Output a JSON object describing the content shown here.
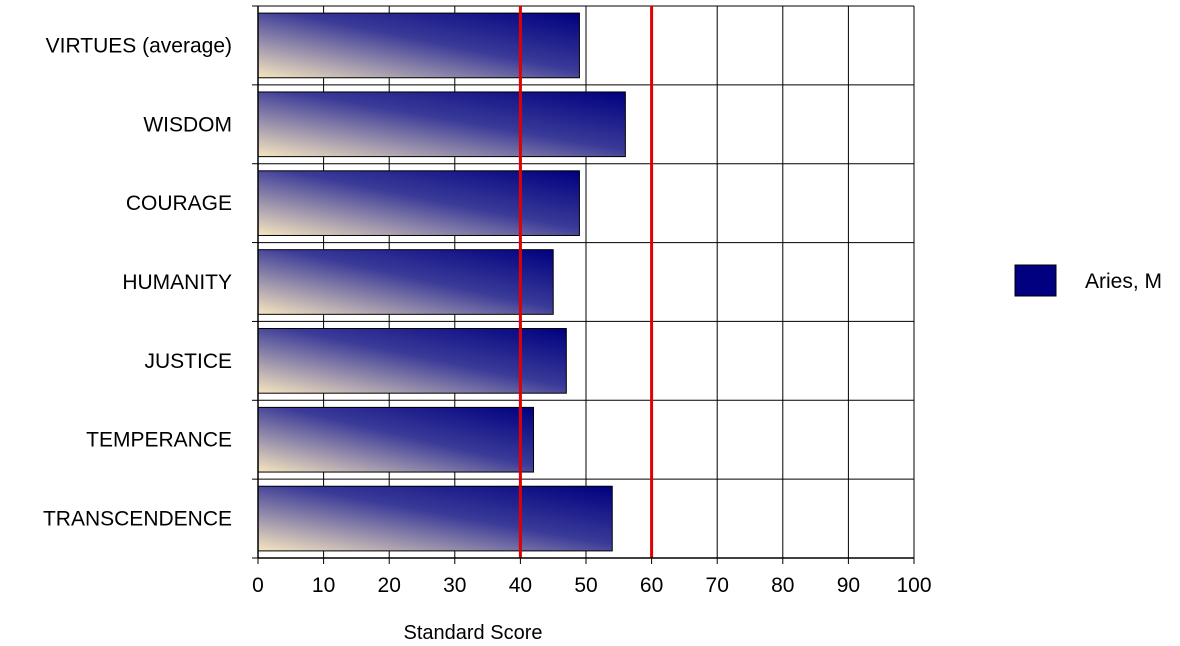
{
  "chart_data": {
    "type": "bar",
    "orientation": "horizontal",
    "categories": [
      "VIRTUES (average)",
      "WISDOM",
      "COURAGE",
      "HUMANITY",
      "JUSTICE",
      "TEMPERANCE",
      "TRANSCENDENCE"
    ],
    "series": [
      {
        "name": "Aries, M",
        "values": [
          49,
          56,
          49,
          45,
          47,
          42,
          54
        ]
      }
    ],
    "xlabel": "Standard Score",
    "ylabel": "",
    "xlim": [
      0,
      100
    ],
    "xticks": [
      0,
      10,
      20,
      30,
      40,
      50,
      60,
      70,
      80,
      90,
      100
    ],
    "reference_lines": [
      40,
      60
    ],
    "grid": true,
    "legend_position": "right",
    "colors": {
      "bar_dark": "#000080",
      "bar_light": "#f7e6bf",
      "reference_line": "#e00000",
      "grid": "#000000"
    }
  }
}
